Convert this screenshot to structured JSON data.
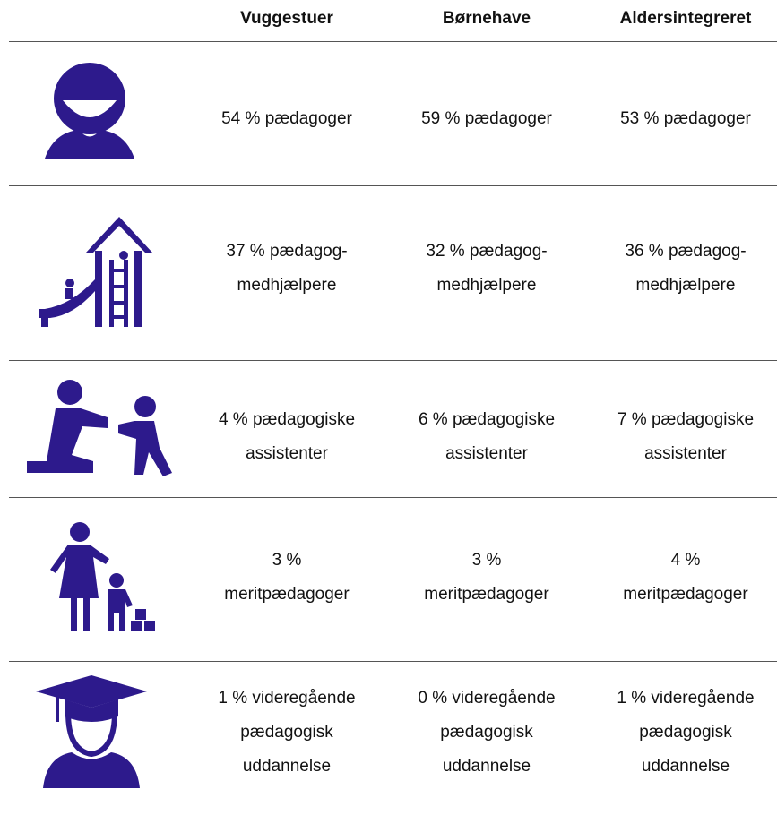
{
  "table": {
    "header": [
      "Vuggestuer",
      "Børnehave",
      "Aldersintegreret"
    ],
    "rows": [
      [
        [
          "54 % pædagoger"
        ],
        [
          "59 % pædagoger"
        ],
        [
          "53 % pædagoger"
        ]
      ],
      [
        [
          "37 % pædagog-",
          "medhjælpere"
        ],
        [
          "32 % pædagog-",
          "medhjælpere"
        ],
        [
          "36 % pædagog-",
          "medhjælpere"
        ]
      ],
      [
        [
          "4 % pædagogiske",
          "assistenter"
        ],
        [
          "6 % pædagogiske",
          "assistenter"
        ],
        [
          "7 % pædagogiske",
          "assistenter"
        ]
      ],
      [
        [
          "3 %",
          "meritpædagoger"
        ],
        [
          "3 %",
          "meritpædagoger"
        ],
        [
          "4 %",
          "meritpædagoger"
        ]
      ],
      [
        [
          "1 % videregående",
          "pædagogisk",
          "uddannelse"
        ],
        [
          "0 % videregående",
          "pædagogisk",
          "uddannelse"
        ],
        [
          "1 % videregående",
          "pædagogisk",
          "uddannelse"
        ]
      ]
    ]
  }
}
